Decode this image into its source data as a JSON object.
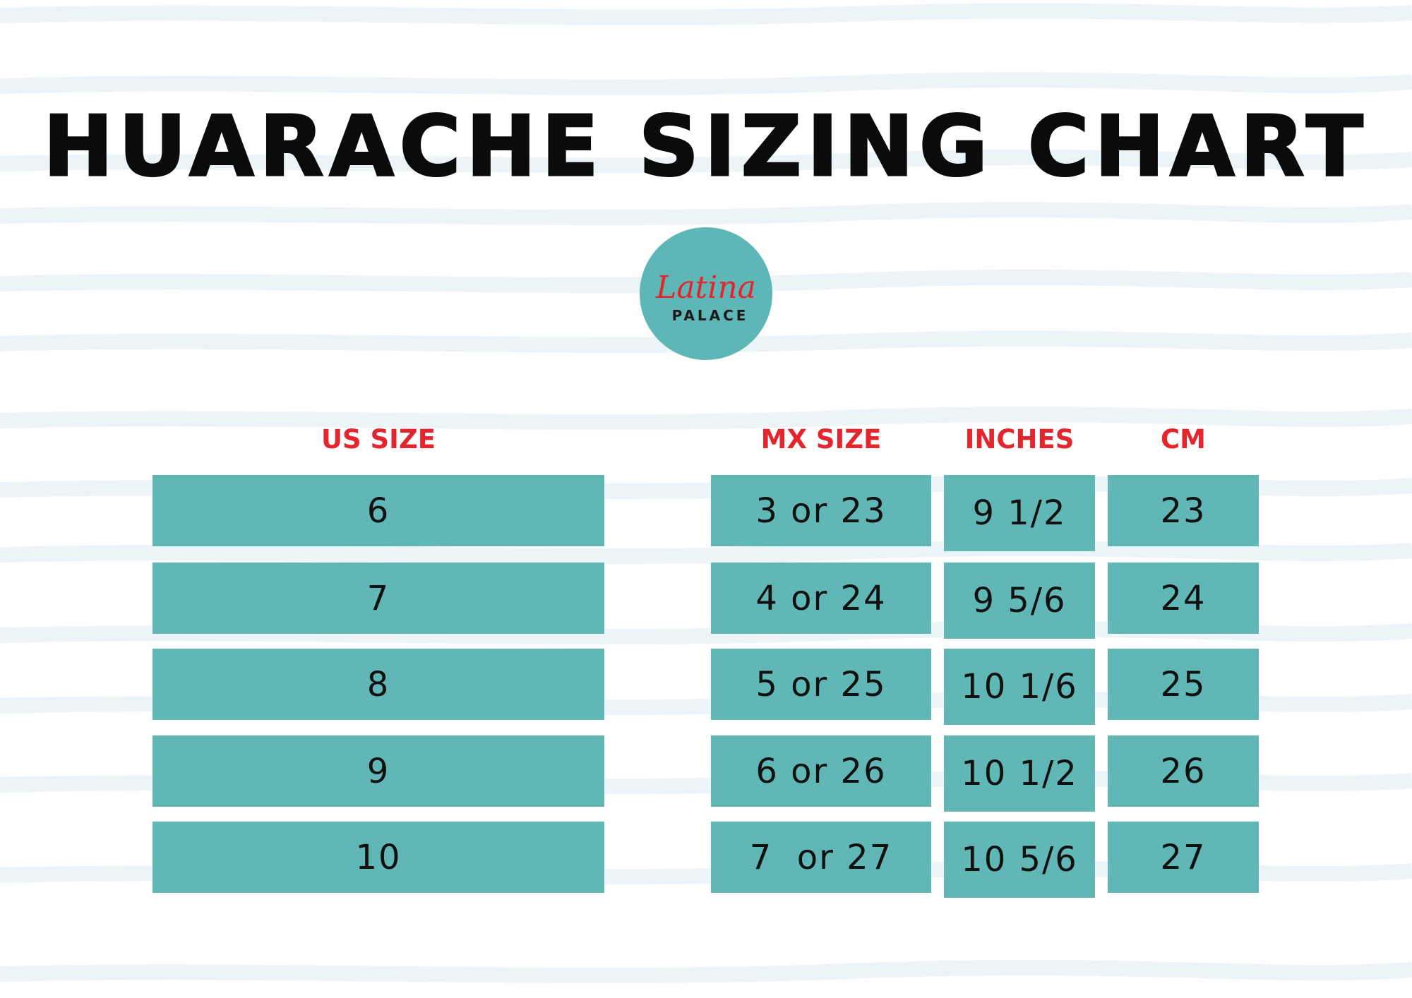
{
  "title": "HUARACHE SIZING CHART",
  "logo": {
    "script_text": "Latina",
    "sub_text": "PALACE"
  },
  "columns": {
    "us": "US SIZE",
    "mx": "MX SIZE",
    "inches": "INCHES",
    "cm": "CM"
  },
  "rows": [
    {
      "us": "6",
      "mx": "3 or 23",
      "inches": "9 1/2",
      "cm": "23"
    },
    {
      "us": "7",
      "mx": "4 or 24",
      "inches": "9 5/6",
      "cm": "24"
    },
    {
      "us": "8",
      "mx": "5 or 25",
      "inches": "10 1/6",
      "cm": "25"
    },
    {
      "us": "9",
      "mx": "6 or 26",
      "inches": "10 1/2",
      "cm": "26"
    },
    {
      "us": "10",
      "mx": "7  or 27",
      "inches": "10 5/6",
      "cm": "27"
    }
  ],
  "colors": {
    "accent": "#e3262d",
    "cell_bg": "#60b7b6",
    "logo_bg": "#5fb6b6",
    "stripe": "#eaf3f6",
    "text": "#111111"
  }
}
